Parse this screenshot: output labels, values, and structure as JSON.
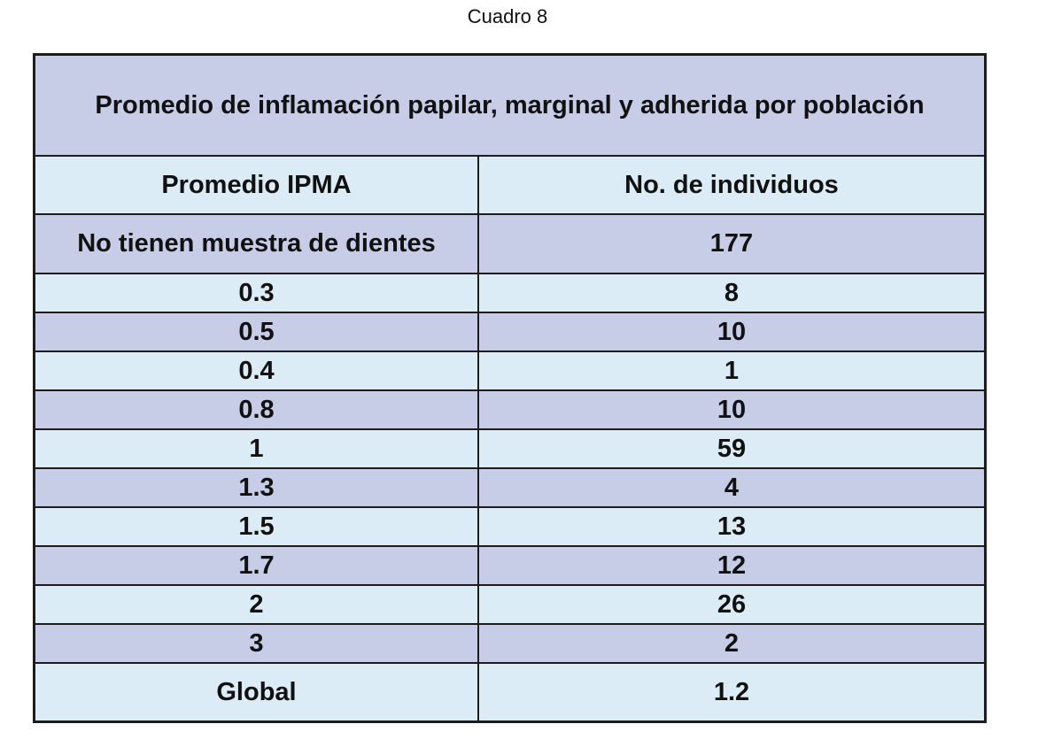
{
  "caption": "Cuadro 8",
  "table": {
    "title": "Promedio de inflamación papilar, marginal y adherida por población",
    "headers": [
      "Promedio IPMA",
      "No. de individuos"
    ],
    "rows": [
      {
        "ipma": "No tienen muestra de dientes",
        "individuos": "177"
      },
      {
        "ipma": "0.3",
        "individuos": "8"
      },
      {
        "ipma": "0.5",
        "individuos": "10"
      },
      {
        "ipma": "0.4",
        "individuos": "1"
      },
      {
        "ipma": "0.8",
        "individuos": "10"
      },
      {
        "ipma": "1",
        "individuos": "59"
      },
      {
        "ipma": "1.3",
        "individuos": "4"
      },
      {
        "ipma": "1.5",
        "individuos": "13"
      },
      {
        "ipma": "1.7",
        "individuos": "12"
      },
      {
        "ipma": "2",
        "individuos": "26"
      },
      {
        "ipma": "3",
        "individuos": "2"
      },
      {
        "ipma": "Global",
        "individuos": "1.2"
      }
    ]
  },
  "colors": {
    "row_purple": "#c7cde6",
    "row_blue": "#dcecf6",
    "border": "#1c1c1c"
  }
}
